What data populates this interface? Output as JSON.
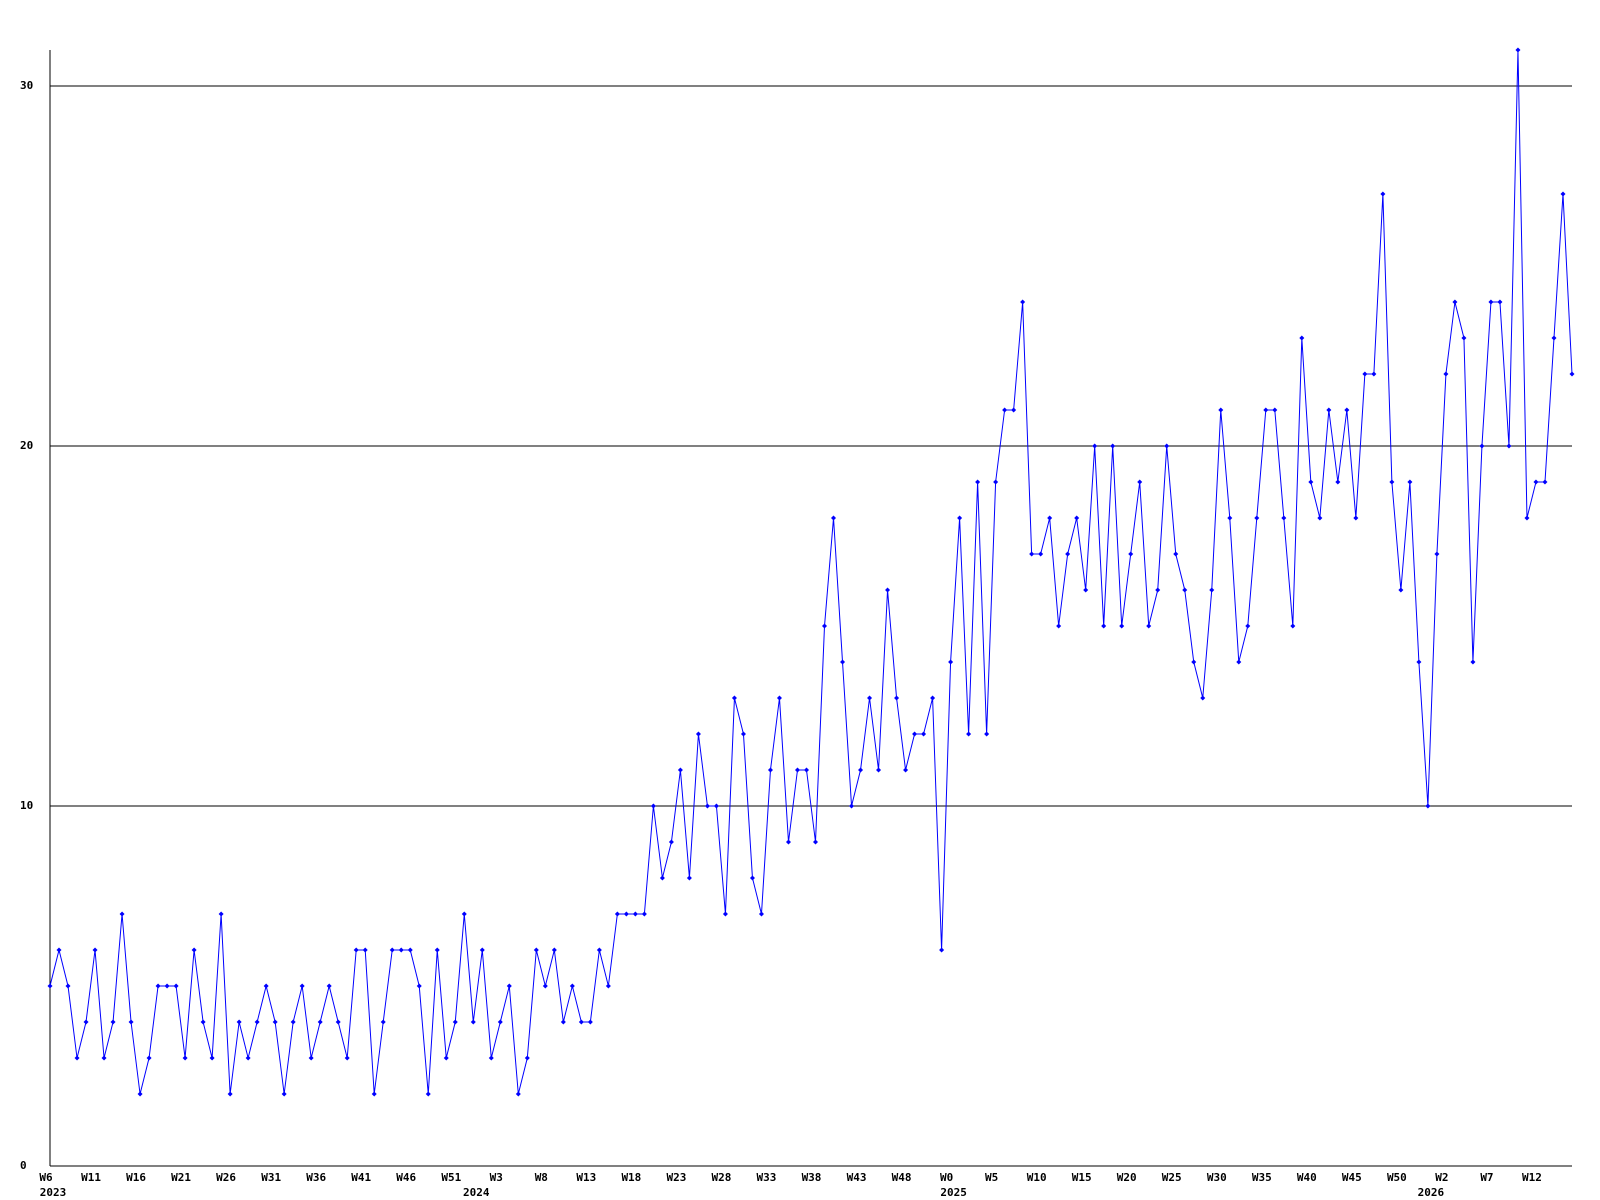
{
  "chart_data": {
    "type": "line",
    "color": "#0000ff",
    "grid": true,
    "ylim": [
      0,
      31
    ],
    "yticks": [
      0,
      10,
      20,
      30
    ],
    "categories": [
      "W6",
      null,
      null,
      null,
      null,
      "W11",
      null,
      null,
      null,
      null,
      "W16",
      null,
      null,
      null,
      null,
      "W21",
      null,
      null,
      null,
      null,
      "W26",
      null,
      null,
      null,
      null,
      "W31",
      null,
      null,
      null,
      null,
      "W36",
      null,
      null,
      null,
      null,
      "W41",
      null,
      null,
      null,
      null,
      "W46",
      null,
      null,
      null,
      null,
      "W51",
      null,
      null,
      null,
      null,
      "W3",
      null,
      null,
      null,
      null,
      "W8",
      null,
      null,
      null,
      null,
      "W13",
      null,
      null,
      null,
      null,
      "W18",
      null,
      null,
      null,
      null,
      "W23",
      null,
      null,
      null,
      null,
      "W28",
      null,
      null,
      null,
      null,
      "W33",
      null,
      null,
      null,
      null,
      "W38",
      null,
      null,
      null,
      null,
      "W43",
      null,
      null,
      null,
      null,
      "W48",
      null,
      null,
      null,
      null,
      "W0",
      null,
      null,
      null,
      null,
      "W5",
      null,
      null,
      null,
      null,
      "W10",
      null,
      null,
      null,
      null,
      "W15",
      null,
      null,
      null,
      null,
      "W20",
      null,
      null,
      null,
      null,
      "W25",
      null,
      null,
      null,
      null,
      "W30",
      null,
      null,
      null,
      null,
      "W35",
      null,
      null,
      null,
      null,
      "W40",
      null,
      null,
      null,
      null,
      "W45",
      null,
      null,
      null,
      null,
      "W50",
      null,
      null,
      null,
      null,
      "W2",
      null,
      null,
      null,
      null,
      "W7",
      null,
      null,
      null,
      null,
      "W12",
      null,
      null,
      null,
      null
    ],
    "x_groups": [
      {
        "label": "2023",
        "start": 0
      },
      {
        "label": "2024",
        "start": 47
      },
      {
        "label": "2025",
        "start": 100
      },
      {
        "label": "2026",
        "start": 153
      }
    ],
    "values": [
      5,
      6,
      5,
      3,
      4,
      6,
      3,
      4,
      7,
      4,
      2,
      3,
      5,
      5,
      5,
      3,
      6,
      4,
      3,
      7,
      2,
      4,
      3,
      4,
      5,
      4,
      2,
      4,
      5,
      3,
      4,
      5,
      4,
      3,
      6,
      6,
      2,
      4,
      6,
      6,
      6,
      5,
      2,
      6,
      3,
      4,
      7,
      4,
      6,
      3,
      4,
      5,
      2,
      3,
      6,
      5,
      6,
      4,
      5,
      4,
      4,
      6,
      5,
      7,
      7,
      7,
      7,
      10,
      8,
      9,
      11,
      8,
      12,
      10,
      10,
      7,
      13,
      12,
      8,
      7,
      11,
      13,
      9,
      11,
      11,
      9,
      15,
      18,
      14,
      10,
      11,
      13,
      11,
      16,
      13,
      11,
      12,
      12,
      13,
      6,
      14,
      18,
      12,
      19,
      12,
      19,
      21,
      21,
      24,
      17,
      17,
      18,
      15,
      17,
      18,
      16,
      20,
      15,
      20,
      15,
      17,
      19,
      15,
      16,
      20,
      17,
      16,
      14,
      13,
      16,
      21,
      18,
      14,
      15,
      18,
      21,
      21,
      18,
      15,
      23,
      19,
      18,
      21,
      19,
      21,
      18,
      22,
      22,
      27,
      19,
      16,
      19,
      14,
      10,
      17,
      22,
      24,
      23,
      14,
      20,
      24,
      24,
      20,
      31,
      18,
      19,
      19,
      23,
      27,
      22
    ]
  }
}
